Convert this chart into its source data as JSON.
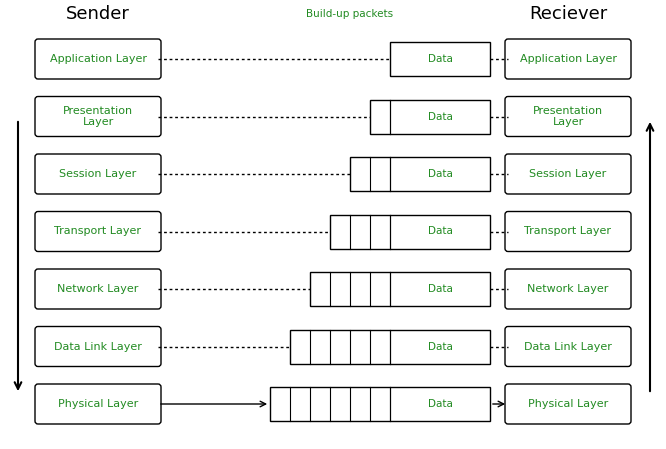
{
  "sender_label": "Sender",
  "receiver_label": "Reciever",
  "buildup_label": "Build-up packets",
  "green": "#228B22",
  "black": "#000000",
  "layers_sender": [
    "Application Layer",
    "Presentation\nLayer",
    "Session Layer",
    "Transport Layer",
    "Network Layer",
    "Data Link Layer",
    "Physical Layer"
  ],
  "layers_receiver": [
    "Application Layer",
    "Presentation\nLayer",
    "Session Layer",
    "Transport Layer",
    "Network Layer",
    "Data Link Layer",
    "Physical Layer"
  ],
  "num_header_boxes": [
    0,
    1,
    2,
    3,
    4,
    5,
    6
  ],
  "figsize": [
    6.66,
    4.49
  ],
  "dpi": 100
}
